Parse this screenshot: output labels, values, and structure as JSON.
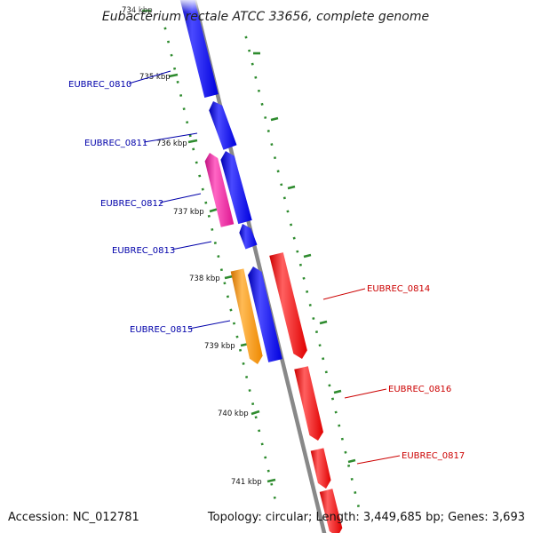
{
  "title": "Eubacterium rectale ATCC 33656, complete genome",
  "accession": "Accession: NC_012781",
  "summary": "Topology: circular; Length: 3,449,685 bp; Genes: 3,693",
  "colors": {
    "backbone": "#888888",
    "tick": "#2e8b2e",
    "forward_label": "#0000aa",
    "reverse_label": "#cc0000",
    "forward_gene": "#0000ee",
    "reverse_gene": "#ff0000",
    "pink_gene": "#ee1a99",
    "orange_gene": "#ff9900"
  },
  "ticks": [
    {
      "label": "734 kbp"
    },
    {
      "label": "735 kbp"
    },
    {
      "label": "736 kbp"
    },
    {
      "label": "737 kbp"
    },
    {
      "label": "738 kbp"
    },
    {
      "label": "739 kbp"
    },
    {
      "label": "740 kbp"
    },
    {
      "label": "741 kbp"
    }
  ],
  "genes": [
    {
      "label": "EUBREC_0810",
      "strand": "forward",
      "color": "#0000ee"
    },
    {
      "label": "EUBREC_0811",
      "strand": "forward",
      "color": "#0000ee"
    },
    {
      "label": "EUBREC_0812",
      "strand": "forward",
      "color": "#ee1a99"
    },
    {
      "label": "EUBREC_0813",
      "strand": "forward",
      "color": "#0000ee"
    },
    {
      "label": "EUBREC_0814",
      "strand": "reverse",
      "color": "#ff0000"
    },
    {
      "label": "EUBREC_0815",
      "strand": "forward",
      "color": "#ff9900"
    },
    {
      "label": "EUBREC_0816",
      "strand": "reverse",
      "color": "#ff0000"
    },
    {
      "label": "EUBREC_0817",
      "strand": "reverse",
      "color": "#ff0000"
    }
  ]
}
